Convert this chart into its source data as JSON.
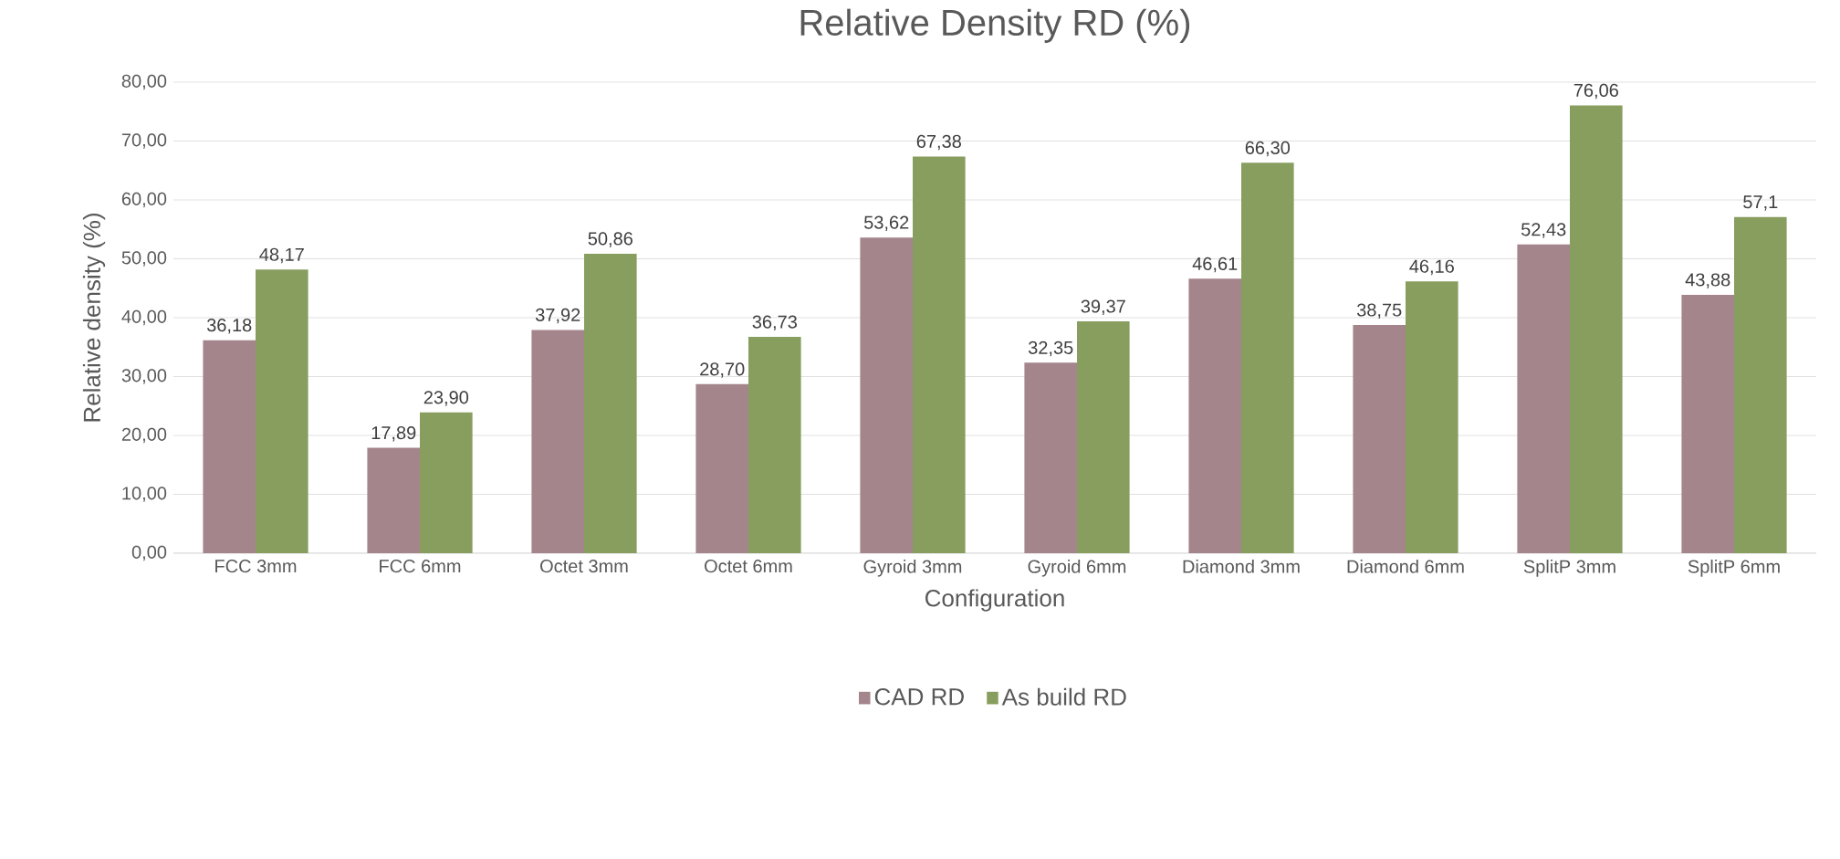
{
  "chart_data": {
    "type": "bar",
    "title": "Relative Density  RD (%)",
    "xlabel": "Configuration",
    "ylabel": "Relative density (%)",
    "categories": [
      "FCC 3mm",
      "FCC 6mm",
      "Octet 3mm",
      "Octet 6mm",
      "Gyroid 3mm",
      "Gyroid 6mm",
      "Diamond 3mm",
      "Diamond 6mm",
      "SplitP 3mm",
      "SplitP 6mm"
    ],
    "series": [
      {
        "name": "CAD RD",
        "color": "#a4858b",
        "values": [
          36.18,
          17.89,
          37.92,
          28.7,
          53.62,
          32.35,
          46.61,
          38.75,
          52.43,
          43.88
        ],
        "value_labels": [
          "36,18",
          "17,89",
          "37,92",
          "28,70",
          "53,62",
          "32,35",
          "46,61",
          "38,75",
          "52,43",
          "43,88"
        ]
      },
      {
        "name": "As build RD",
        "color": "#879e5f",
        "values": [
          48.17,
          23.9,
          50.86,
          36.73,
          67.38,
          39.37,
          66.3,
          46.16,
          76.06,
          57.1
        ],
        "value_labels": [
          "48,17",
          "23,90",
          "50,86",
          "36,73",
          "67,38",
          "39,37",
          "66,30",
          "46,16",
          "76,06",
          "57,1"
        ]
      }
    ],
    "ylim": [
      0,
      80
    ],
    "yticks": [
      {
        "value": 0,
        "label": "0,00"
      },
      {
        "value": 10,
        "label": "10,00"
      },
      {
        "value": 20,
        "label": "20,00"
      },
      {
        "value": 30,
        "label": "30,00"
      },
      {
        "value": 40,
        "label": "40,00"
      },
      {
        "value": 50,
        "label": "50,00"
      },
      {
        "value": 60,
        "label": "60,00"
      },
      {
        "value": 70,
        "label": "70,00"
      },
      {
        "value": 80,
        "label": "80,00"
      }
    ],
    "grid": "y",
    "legend": "bottom"
  }
}
